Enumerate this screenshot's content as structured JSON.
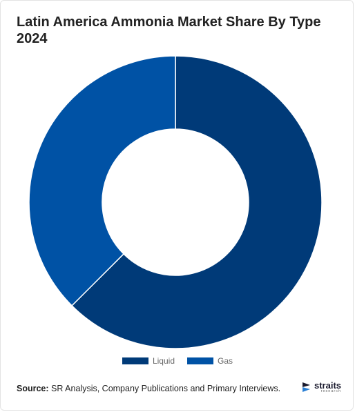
{
  "page": {
    "title": "Latin America Ammonia Market Share By Type 2024"
  },
  "chart_data": {
    "type": "pie",
    "variant": "donut",
    "title": "Latin America Ammonia Market Share By Type 2024",
    "categories": [
      "Liquid",
      "Gas"
    ],
    "values": [
      62.5,
      37.5
    ],
    "colors": [
      "#003a78",
      "#0052a5"
    ],
    "legend_position": "bottom-center"
  },
  "legend": {
    "items": [
      {
        "label": "Liquid",
        "color": "#003a78"
      },
      {
        "label": "Gas",
        "color": "#0052a5"
      }
    ]
  },
  "footer": {
    "source_label": "Source:",
    "source_text": "SR Analysis, Company Publications and Primary Interviews.",
    "logo_name": "straits",
    "logo_sub": "research",
    "logo_icon": "straits-logo-icon"
  }
}
